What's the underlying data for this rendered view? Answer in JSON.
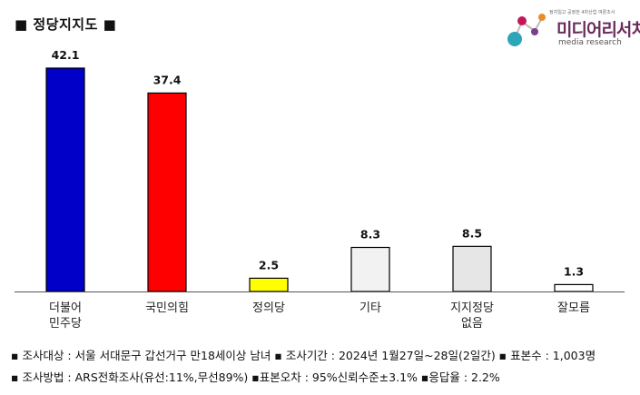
{
  "title": "■ 정당지지도 ■",
  "logo": {
    "tagline": "정치일고 공정한 4차산업 여론조사",
    "brand": "미디어리서치",
    "brand_en": "media research"
  },
  "chart_data": {
    "type": "bar",
    "title": "정당지지도",
    "categories": [
      "더불어\n민주당",
      "국민의힘",
      "정의당",
      "기타",
      "지지정당\n없음",
      "잘모름"
    ],
    "values": [
      42.1,
      37.4,
      2.5,
      8.3,
      8.5,
      1.3
    ],
    "ylim": [
      0,
      42.1
    ],
    "grid": false,
    "colors": [
      "#0000c8",
      "#ff0000",
      "#ffff00",
      "#f2f2f2",
      "#e6e6e6",
      "#ffffff"
    ]
  },
  "footnotes": {
    "line1": "▪ 조사대상 : 서울 서대문구 갑선거구 만18세이상 남녀  ▪ 조사기간 : 2024년 1월27일~28일(2일간)  ▪ 표본수 : 1,003명",
    "line2": "▪ 조사방법 : ARS전화조사(유선:11%,무선89%)  ▪표본오차 : 95%신뢰수준±3.1%  ▪응답율 : 2.2%"
  }
}
